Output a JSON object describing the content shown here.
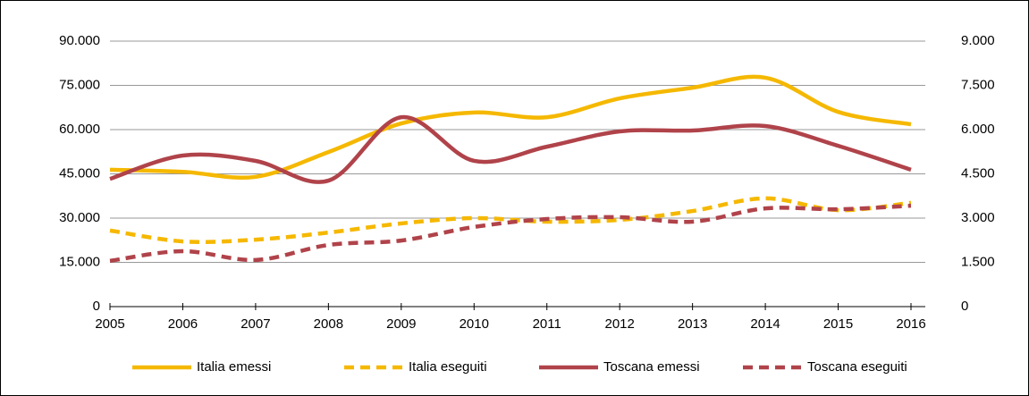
{
  "chart_data": {
    "type": "line",
    "categories": [
      "2005",
      "2006",
      "2007",
      "2008",
      "2009",
      "2010",
      "2011",
      "2012",
      "2013",
      "2014",
      "2015",
      "2016"
    ],
    "series": [
      {
        "name": "Italia emessi",
        "color": "#f5b800",
        "dash": false,
        "axis": "y",
        "values": [
          46400,
          45700,
          44000,
          52400,
          62100,
          65800,
          64200,
          70600,
          74200,
          77600,
          66000,
          61800
        ]
      },
      {
        "name": "Italia eseguiti",
        "color": "#f5b800",
        "dash": true,
        "axis": "y",
        "values": [
          25800,
          22100,
          22700,
          25100,
          28200,
          30000,
          28800,
          29400,
          32400,
          36700,
          32700,
          35200
        ]
      },
      {
        "name": "Toscana emessi",
        "color": "#b0434a",
        "dash": false,
        "axis": "y2",
        "values": [
          4330,
          5120,
          4940,
          4270,
          6420,
          4940,
          5420,
          5940,
          5970,
          6120,
          5450,
          4640
        ]
      },
      {
        "name": "Toscana eseguiti",
        "color": "#b0434a",
        "dash": true,
        "axis": "y2",
        "values": [
          1550,
          1880,
          1580,
          2090,
          2240,
          2700,
          2970,
          3030,
          2880,
          3330,
          3300,
          3420
        ]
      }
    ],
    "ylim": [
      0,
      90000
    ],
    "yticks": [
      0,
      {
        "value": 15000,
        "label": "15.000"
      },
      {
        "value": 30000,
        "label": "30.000"
      },
      {
        "value": 45000,
        "label": "45.000"
      },
      {
        "value": 60000,
        "label": "60.000"
      },
      {
        "value": 75000,
        "label": "75.000"
      },
      {
        "value": 90000,
        "label": "90.000"
      }
    ],
    "y2lim": [
      0,
      9000
    ],
    "y2ticks": [
      0,
      {
        "value": 1500,
        "label": "1.500"
      },
      {
        "value": 3000,
        "label": "3.000"
      },
      {
        "value": 4500,
        "label": "4.500"
      },
      {
        "value": 6000,
        "label": "6.000"
      },
      {
        "value": 7500,
        "label": "7.500"
      },
      {
        "value": 9000,
        "label": "9.000"
      }
    ],
    "grid": true,
    "legend": "bottom"
  }
}
